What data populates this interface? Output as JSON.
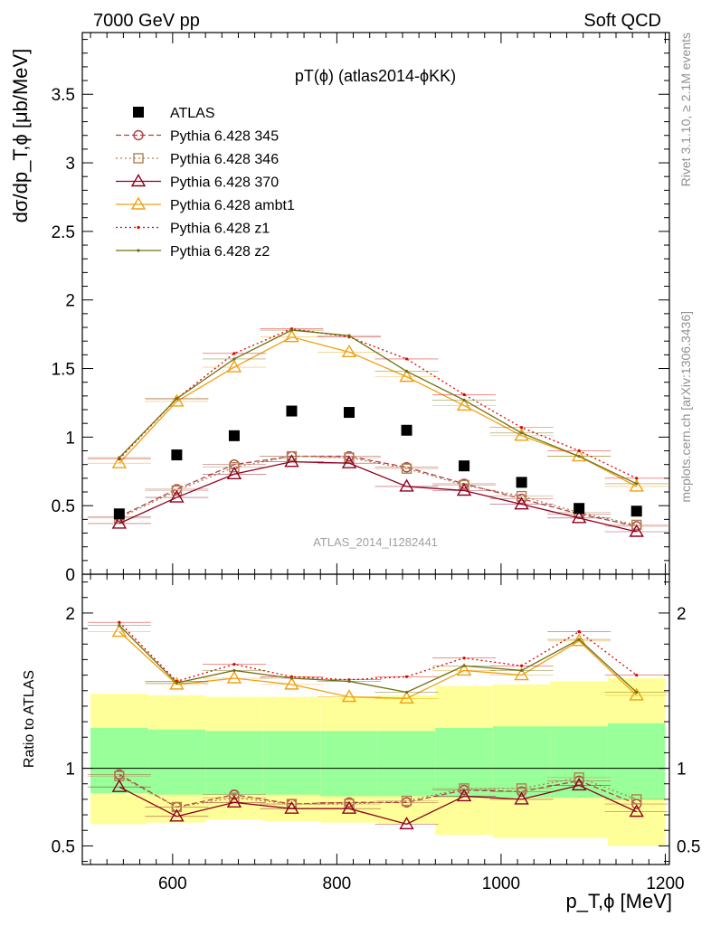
{
  "header": {
    "left": "7000 GeV pp",
    "right": "Soft QCD",
    "title": "pT(ϕ) (atlas2014-ϕKK)",
    "analysis_id": "ATLAS_2014_I1282441",
    "side_top": "Rivet 3.1.10, ≥ 2.1M events",
    "side_bottom": "mcplots.cern.ch [arXiv:1306.3436]"
  },
  "chart_data": [
    {
      "type": "line",
      "panel": "main",
      "ylabel": "dσ/dp_T,ϕ [μb/MeV]",
      "ylim": [
        0,
        3.95
      ],
      "yticks": [
        "0",
        "0.5",
        "1",
        "1.5",
        "2",
        "2.5",
        "3",
        "3.5"
      ],
      "x": [
        535,
        605,
        675,
        745,
        815,
        885,
        955,
        1025,
        1095,
        1165
      ],
      "data": {
        "name": "ATLAS",
        "values": [
          0.44,
          0.87,
          1.01,
          1.19,
          1.18,
          1.05,
          0.79,
          0.67,
          0.48,
          0.46
        ]
      },
      "series": [
        {
          "name": "Pythia 6.428 345",
          "values": [
            0.42,
            0.62,
            0.8,
            0.86,
            0.86,
            0.78,
            0.66,
            0.55,
            0.44,
            0.35
          ]
        },
        {
          "name": "Pythia 6.428 346",
          "values": [
            0.41,
            0.61,
            0.78,
            0.86,
            0.85,
            0.77,
            0.65,
            0.57,
            0.45,
            0.36
          ]
        },
        {
          "name": "Pythia 6.428 370",
          "values": [
            0.37,
            0.56,
            0.73,
            0.82,
            0.81,
            0.64,
            0.61,
            0.51,
            0.41,
            0.31
          ]
        },
        {
          "name": "Pythia 6.428 ambt1",
          "values": [
            0.81,
            1.26,
            1.51,
            1.73,
            1.62,
            1.44,
            1.23,
            1.01,
            0.86,
            0.64
          ]
        },
        {
          "name": "Pythia 6.428 z1",
          "values": [
            0.84,
            1.28,
            1.61,
            1.79,
            1.73,
            1.57,
            1.31,
            1.07,
            0.9,
            0.7
          ]
        },
        {
          "name": "Pythia 6.428 z2",
          "values": [
            0.85,
            1.28,
            1.57,
            1.78,
            1.74,
            1.48,
            1.27,
            1.03,
            0.86,
            0.66
          ]
        }
      ]
    },
    {
      "type": "line",
      "panel": "ratio",
      "ylabel": "Ratio to ATLAS",
      "xlabel": "p_T,ϕ [MeV]",
      "ylim": [
        0.38,
        2.25
      ],
      "xlim": [
        490,
        1205
      ],
      "yticks": [
        "0.5",
        "1",
        "2"
      ],
      "xticks": [
        "600",
        "800",
        "1000",
        "1200"
      ],
      "x": [
        535,
        605,
        675,
        745,
        815,
        885,
        955,
        1025,
        1095,
        1165
      ],
      "band_edges": [
        500,
        570,
        640,
        710,
        780,
        850,
        920,
        990,
        1060,
        1130,
        1200
      ],
      "band_inner": [
        [
          0.84,
          1.26
        ],
        [
          0.83,
          1.25
        ],
        [
          0.83,
          1.24
        ],
        [
          0.83,
          1.24
        ],
        [
          0.82,
          1.24
        ],
        [
          0.82,
          1.24
        ],
        [
          0.81,
          1.26
        ],
        [
          0.81,
          1.27
        ],
        [
          0.81,
          1.27
        ],
        [
          0.8,
          1.29
        ]
      ],
      "band_outer": [
        [
          0.64,
          1.48
        ],
        [
          0.65,
          1.47
        ],
        [
          0.67,
          1.46
        ],
        [
          0.66,
          1.46
        ],
        [
          0.65,
          1.46
        ],
        [
          0.64,
          1.47
        ],
        [
          0.57,
          1.53
        ],
        [
          0.55,
          1.54
        ],
        [
          0.55,
          1.56
        ],
        [
          0.5,
          1.58
        ]
      ],
      "series": [
        {
          "name": "Pythia 6.428 345",
          "values": [
            0.96,
            0.75,
            0.83,
            0.77,
            0.78,
            0.78,
            0.86,
            0.85,
            0.92,
            0.77
          ]
        },
        {
          "name": "Pythia 6.428 346",
          "values": [
            0.95,
            0.75,
            0.81,
            0.77,
            0.77,
            0.79,
            0.87,
            0.87,
            0.94,
            0.8
          ]
        },
        {
          "name": "Pythia 6.428 370",
          "values": [
            0.88,
            0.69,
            0.78,
            0.74,
            0.74,
            0.64,
            0.82,
            0.8,
            0.89,
            0.72
          ]
        },
        {
          "name": "Pythia 6.428 ambt1",
          "values": [
            1.88,
            1.54,
            1.58,
            1.54,
            1.46,
            1.45,
            1.63,
            1.6,
            1.82,
            1.47
          ]
        },
        {
          "name": "Pythia 6.428 z1",
          "values": [
            1.94,
            1.56,
            1.67,
            1.59,
            1.57,
            1.59,
            1.71,
            1.66,
            1.88,
            1.6
          ]
        },
        {
          "name": "Pythia 6.428 z2",
          "values": [
            1.92,
            1.55,
            1.63,
            1.58,
            1.56,
            1.49,
            1.66,
            1.63,
            1.83,
            1.49
          ]
        }
      ]
    }
  ],
  "styles": {
    "data_color": "#000000",
    "series_colors": [
      "#b04040",
      "#b08050",
      "#900020",
      "#f0a010",
      "#e00000",
      "#707010"
    ],
    "series_dash": [
      "6,3",
      "2,3",
      "",
      "",
      "2,3",
      ""
    ],
    "series_markers": [
      "circle",
      "square",
      "triangle",
      "triangle",
      "dot",
      "dot"
    ],
    "band_inner_color": "#99ff99",
    "band_outer_color": "#ffff99",
    "side_text_color": "#909090"
  }
}
